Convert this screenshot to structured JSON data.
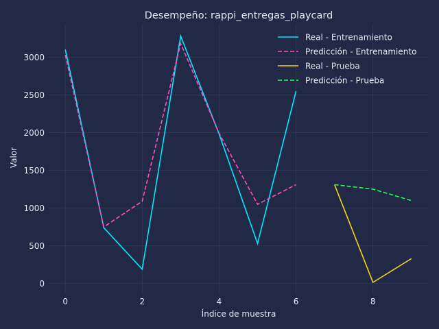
{
  "chart_data": {
    "type": "line",
    "title": "Desempeño: rappi_entregas_playcard",
    "xlabel": "Índice de muestra",
    "ylabel": "Valor",
    "xlim": [
      -0.45,
      9.45
    ],
    "ylim": [
      -130,
      3430
    ],
    "xticks": [
      0,
      2,
      4,
      6,
      8
    ],
    "yticks": [
      0,
      500,
      1000,
      1500,
      2000,
      2500,
      3000
    ],
    "grid": true,
    "legend_position": "top-right",
    "series": [
      {
        "name": "Real - Entrenamiento",
        "color": "#00eaff",
        "dash": "solid",
        "x": [
          0,
          1,
          2,
          3,
          4,
          5,
          6
        ],
        "y": [
          3100,
          740,
          190,
          3280,
          1980,
          530,
          2550
        ]
      },
      {
        "name": "Predicción - Entrenamiento",
        "color": "#ff4fbf",
        "dash": "dashed",
        "x": [
          0,
          1,
          2,
          3,
          4,
          5,
          6
        ],
        "y": [
          3030,
          750,
          1090,
          3180,
          1990,
          1050,
          1310
        ]
      },
      {
        "name": "Real - Prueba",
        "color": "#f2d31b",
        "dash": "solid",
        "x": [
          7,
          8,
          9
        ],
        "y": [
          1310,
          15,
          330
        ]
      },
      {
        "name": "Predicción - Prueba",
        "color": "#1fff4f",
        "dash": "dashed",
        "x": [
          7,
          8,
          9
        ],
        "y": [
          1310,
          1250,
          1100
        ]
      }
    ]
  }
}
